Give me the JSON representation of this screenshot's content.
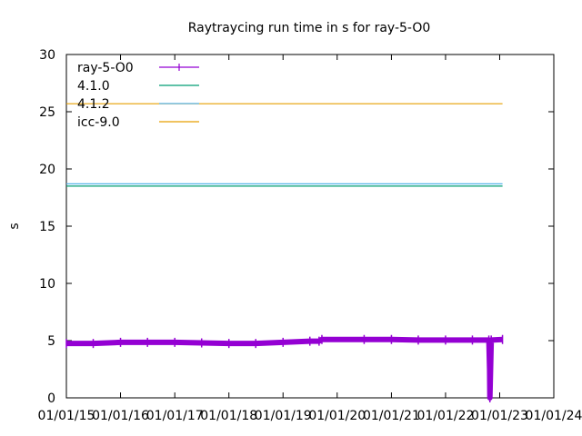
{
  "chart_data": {
    "type": "line",
    "title": "Raytraycing run time in s for ray-5-O0",
    "xlabel": "",
    "ylabel": "s",
    "xlim": [
      "2015-01-01",
      "2024-01-01"
    ],
    "ylim": [
      0,
      30
    ],
    "x_ticks": [
      "01/01/15",
      "01/01/16",
      "01/01/17",
      "01/01/18",
      "01/01/19",
      "01/01/20",
      "01/01/21",
      "01/01/22",
      "01/01/23",
      "01/01/24"
    ],
    "y_ticks": [
      "0",
      "5",
      "10",
      "15",
      "20",
      "25",
      "30"
    ],
    "legend_position": "top-left",
    "grid": false,
    "series": [
      {
        "name": "ray-5-O0",
        "color": "#9400d3",
        "style": "line with error bars",
        "points": [
          {
            "x": "2015-01-01",
            "y": 4.75
          },
          {
            "x": "2015-07-01",
            "y": 4.75
          },
          {
            "x": "2016-01-01",
            "y": 4.85
          },
          {
            "x": "2016-07-01",
            "y": 4.85
          },
          {
            "x": "2017-01-01",
            "y": 4.85
          },
          {
            "x": "2017-07-01",
            "y": 4.8
          },
          {
            "x": "2018-01-01",
            "y": 4.75
          },
          {
            "x": "2018-07-01",
            "y": 4.75
          },
          {
            "x": "2019-01-01",
            "y": 4.85
          },
          {
            "x": "2019-07-01",
            "y": 4.95
          },
          {
            "x": "2019-09-01",
            "y": 4.95
          },
          {
            "x": "2019-09-20",
            "y": 5.1
          },
          {
            "x": "2020-07-01",
            "y": 5.1
          },
          {
            "x": "2021-01-01",
            "y": 5.1
          },
          {
            "x": "2021-07-01",
            "y": 5.05
          },
          {
            "x": "2022-01-01",
            "y": 5.05
          },
          {
            "x": "2022-07-01",
            "y": 5.05
          },
          {
            "x": "2022-10-20",
            "y": 5.05
          },
          {
            "x": "2022-10-25",
            "y": 2.5
          },
          {
            "x": "2022-10-27",
            "y": 0
          },
          {
            "x": "2022-11-05",
            "y": 5.05
          },
          {
            "x": "2023-01-20",
            "y": 5.1
          }
        ]
      },
      {
        "name": "4.1.0",
        "color": "#009e73",
        "style": "horizontal line",
        "points": [
          {
            "x": "2015-01-01",
            "y": 18.5
          },
          {
            "x": "2023-01-20",
            "y": 18.5
          }
        ]
      },
      {
        "name": "4.1.2",
        "color": "#56b4e9",
        "style": "horizontal line",
        "points": [
          {
            "x": "2015-01-01",
            "y": 18.7
          },
          {
            "x": "2023-01-20",
            "y": 18.7
          }
        ]
      },
      {
        "name": "icc-9.0",
        "color": "#e69f00",
        "style": "horizontal line",
        "points": [
          {
            "x": "2015-01-01",
            "y": 25.7
          },
          {
            "x": "2023-01-20",
            "y": 25.7
          }
        ]
      }
    ]
  }
}
